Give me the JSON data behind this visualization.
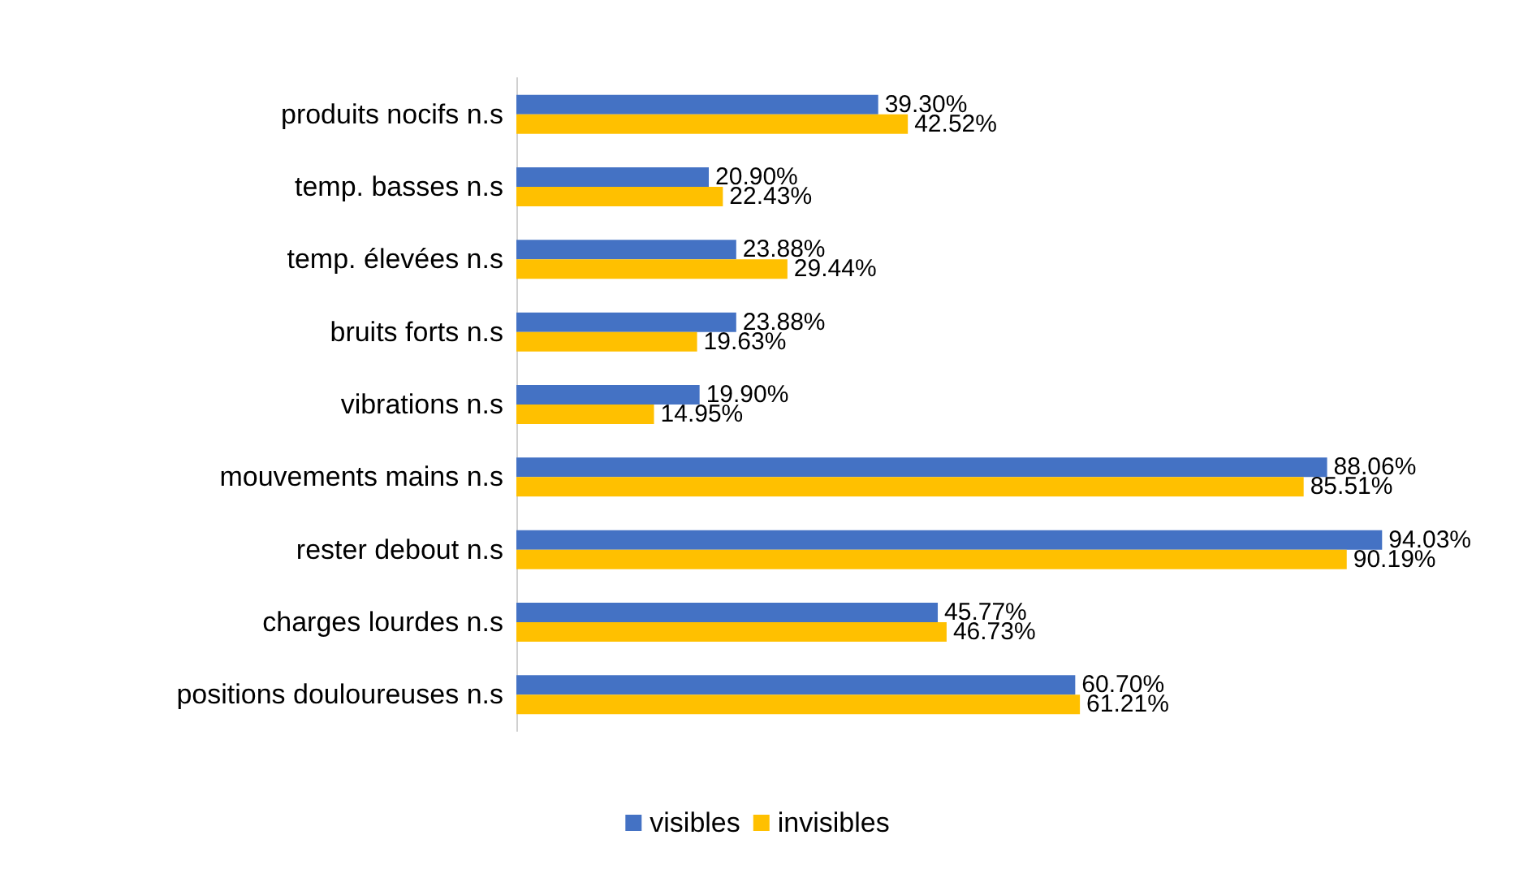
{
  "chart_data": {
    "type": "bar",
    "orientation": "horizontal",
    "categories": [
      "produits nocifs n.s",
      "temp. basses n.s",
      "temp. élevées n.s",
      "bruits forts n.s",
      "vibrations n.s",
      "mouvements mains n.s",
      "rester debout n.s",
      "charges lourdes n.s",
      "positions douloureuses n.s"
    ],
    "series": [
      {
        "name": "visibles",
        "color": "#4472c4",
        "values": [
          39.3,
          20.9,
          23.88,
          23.88,
          19.9,
          88.06,
          94.03,
          45.77,
          60.7
        ],
        "value_labels": [
          "39.30%",
          "20.90%",
          "23.88%",
          "23.88%",
          "19.90%",
          "88.06%",
          "94.03%",
          "45.77%",
          "60.70%"
        ]
      },
      {
        "name": "invisibles",
        "color": "#ffc000",
        "values": [
          42.52,
          22.43,
          29.44,
          19.63,
          14.95,
          85.51,
          90.19,
          46.73,
          61.21
        ],
        "value_labels": [
          "42.52%",
          "22.43%",
          "29.44%",
          "19.63%",
          "14.95%",
          "85.51%",
          "90.19%",
          "46.73%",
          "61.21%"
        ]
      }
    ],
    "legend": "bottom"
  }
}
